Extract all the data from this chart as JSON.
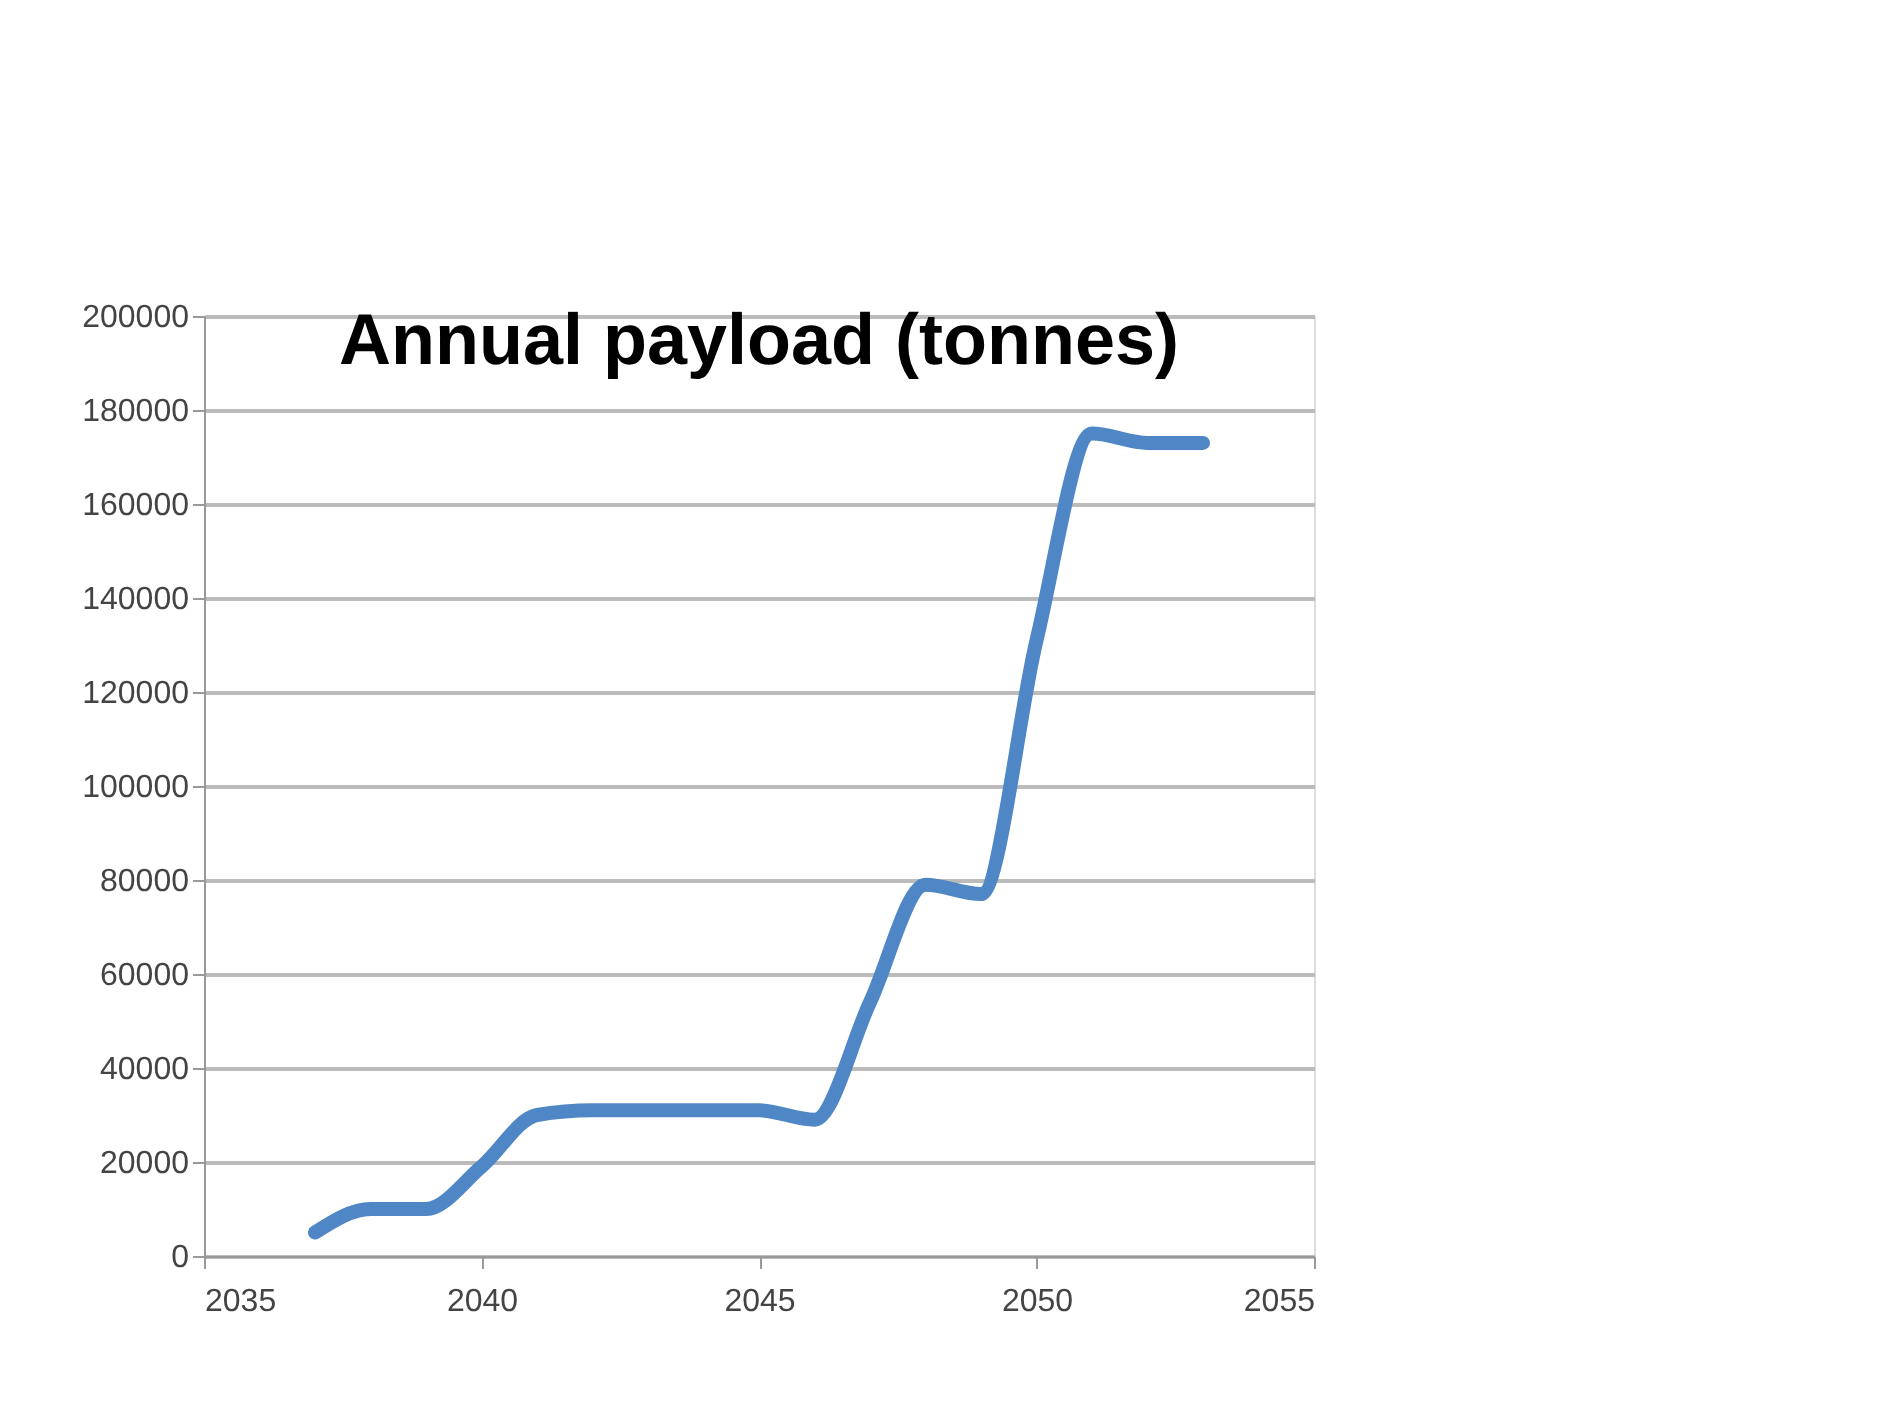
{
  "chart_data": {
    "type": "line",
    "title": "Annual payload (tonnes)",
    "x": [
      2037,
      2038,
      2039,
      2040,
      2041,
      2042,
      2043,
      2044,
      2045,
      2046,
      2047,
      2048,
      2049,
      2050,
      2051,
      2052,
      2053
    ],
    "series": [
      {
        "color": "#4f86c6",
        "values": [
          5000,
          10000,
          10000,
          19000,
          30000,
          31000,
          31000,
          31000,
          31000,
          29000,
          54000,
          79000,
          77000,
          131000,
          175000,
          173000,
          173000
        ]
      }
    ],
    "xlim": [
      2035,
      2055
    ],
    "xticks": [
      2035,
      2040,
      2045,
      2050,
      2055
    ],
    "ylim": [
      0,
      200000
    ],
    "yticks": [
      0,
      20000,
      40000,
      60000,
      80000,
      100000,
      120000,
      140000,
      160000,
      180000,
      200000
    ],
    "grid": "y",
    "marker": "none",
    "line_style": "solid"
  }
}
